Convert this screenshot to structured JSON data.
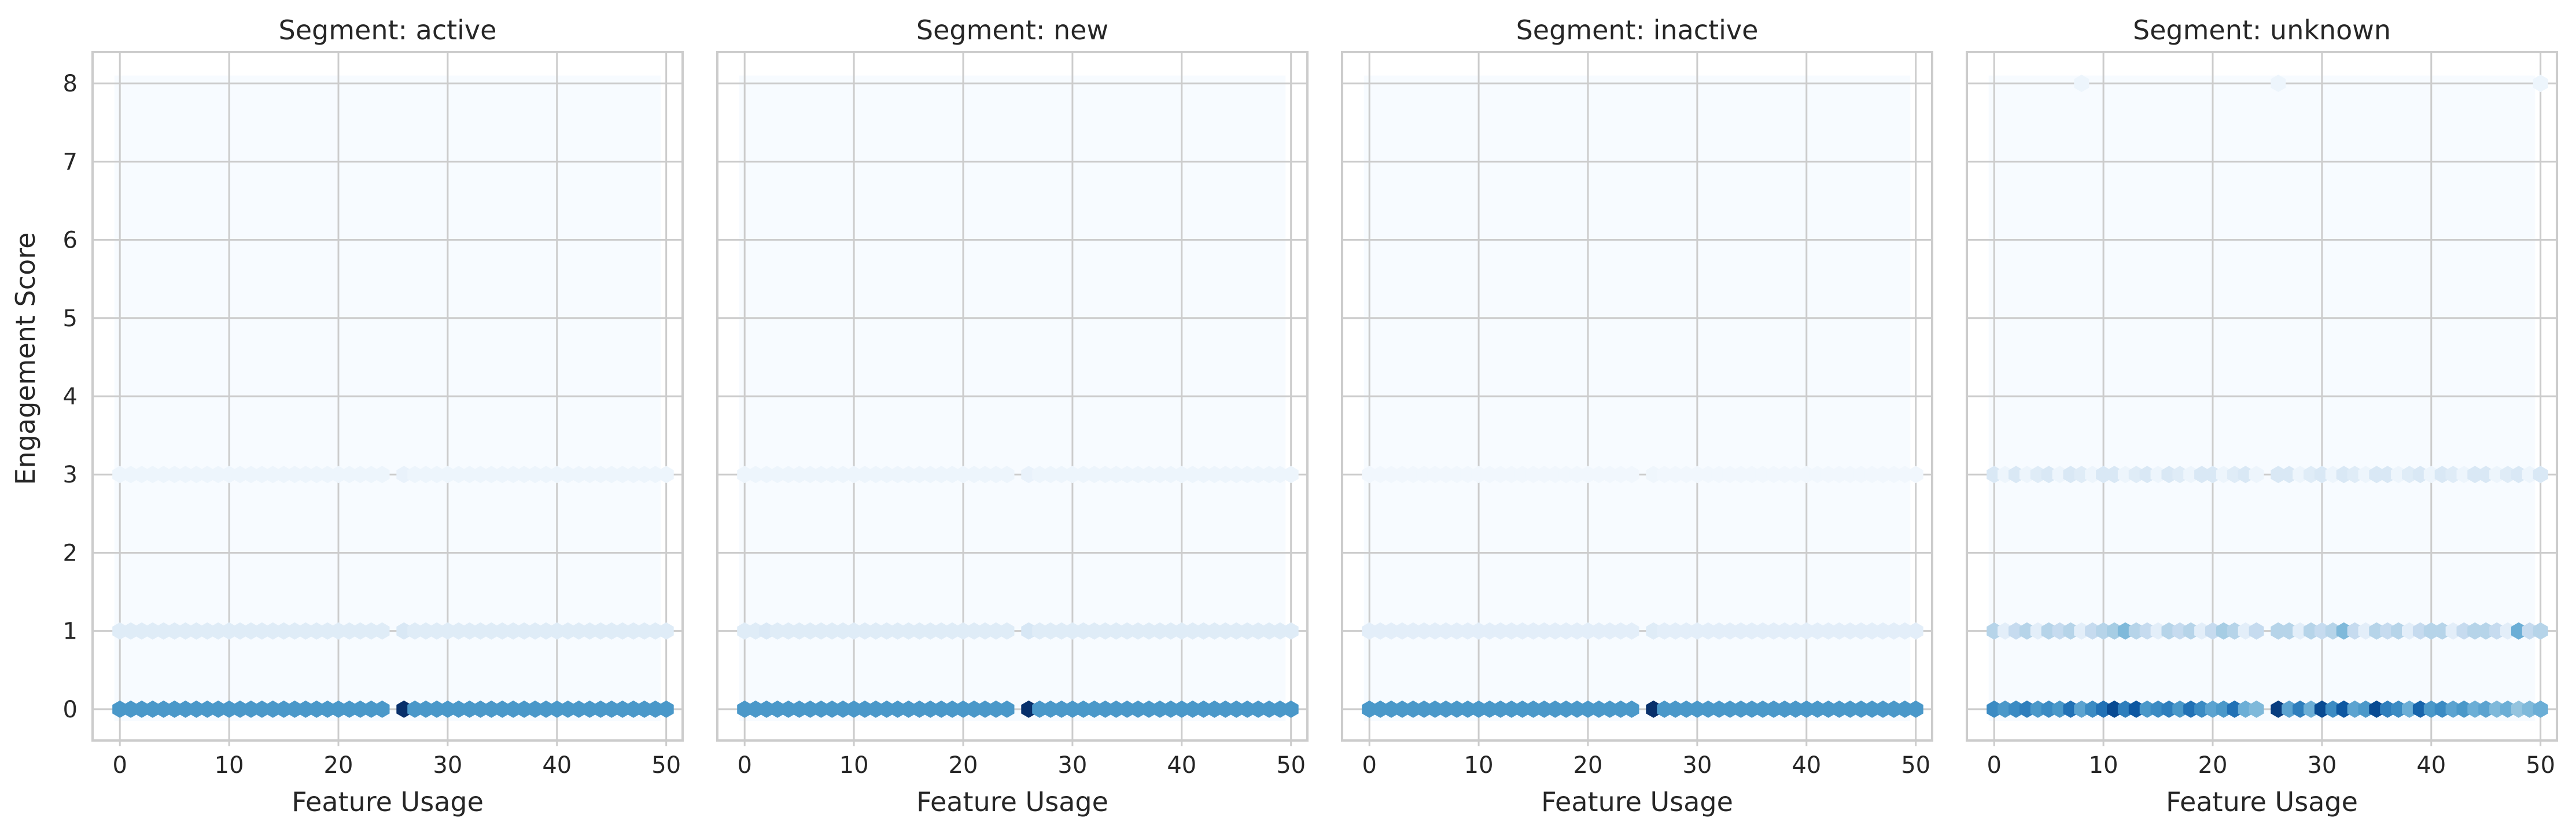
{
  "figure": {
    "ylabel": "Engagement Score",
    "xlabel": "Feature Usage"
  },
  "colors": {
    "background": "#f7fbff",
    "frame": "#cccccc",
    "grid": "#cccccc",
    "text": "#262626",
    "scale": [
      "#f7fbff",
      "#deebf7",
      "#c6dbef",
      "#9ecae1",
      "#6baed6",
      "#4292c6",
      "#2171b5",
      "#08519c",
      "#08306b"
    ]
  },
  "chart_data": [
    {
      "type": "hexbin",
      "title": "Segment: active",
      "xlabel": "Feature Usage",
      "ylabel": "Engagement Score",
      "xlim": [
        -2.5,
        51.5
      ],
      "ylim": [
        -0.4,
        8.4
      ],
      "xticks": [
        0,
        10,
        20,
        30,
        40,
        50
      ],
      "yticks": [
        0,
        1,
        2,
        3,
        4,
        5,
        6,
        7,
        8
      ],
      "grid": true,
      "colormap": "Blues",
      "rows": [
        {
          "y": 0,
          "levels": [
            0.6,
            0.6,
            0.6,
            0.6,
            0.6,
            0.6,
            0.6,
            0.6,
            0.6,
            0.6,
            0.6,
            0.6,
            0.6,
            0.6,
            0.6,
            0.6,
            0.6,
            0.6,
            0.6,
            0.6,
            0.6,
            0.6,
            0.6,
            0.6,
            0.6,
            0.0,
            1.0,
            0.6,
            0.6,
            0.6,
            0.6,
            0.6,
            0.6,
            0.6,
            0.6,
            0.6,
            0.6,
            0.6,
            0.6,
            0.6,
            0.6,
            0.6,
            0.6,
            0.6,
            0.6,
            0.6,
            0.6,
            0.6,
            0.6,
            0.6,
            0.6
          ]
        },
        {
          "y": 1,
          "levels": [
            0.12,
            0.12,
            0.12,
            0.12,
            0.12,
            0.12,
            0.12,
            0.12,
            0.12,
            0.12,
            0.12,
            0.12,
            0.12,
            0.12,
            0.12,
            0.12,
            0.12,
            0.12,
            0.12,
            0.12,
            0.12,
            0.12,
            0.12,
            0.12,
            0.12,
            0.0,
            0.15,
            0.12,
            0.12,
            0.12,
            0.12,
            0.12,
            0.12,
            0.12,
            0.12,
            0.12,
            0.12,
            0.12,
            0.12,
            0.12,
            0.12,
            0.12,
            0.12,
            0.12,
            0.12,
            0.12,
            0.12,
            0.12,
            0.12,
            0.12,
            0.12
          ]
        },
        {
          "y": 3,
          "levels": [
            0.05,
            0.05,
            0.05,
            0.05,
            0.05,
            0.05,
            0.05,
            0.05,
            0.05,
            0.05,
            0.05,
            0.05,
            0.05,
            0.05,
            0.05,
            0.05,
            0.05,
            0.05,
            0.05,
            0.05,
            0.05,
            0.05,
            0.05,
            0.05,
            0.05,
            0.0,
            0.07,
            0.05,
            0.05,
            0.05,
            0.05,
            0.05,
            0.05,
            0.05,
            0.05,
            0.05,
            0.05,
            0.05,
            0.05,
            0.05,
            0.05,
            0.05,
            0.05,
            0.05,
            0.05,
            0.05,
            0.05,
            0.05,
            0.05,
            0.05,
            0.05
          ]
        }
      ]
    },
    {
      "type": "hexbin",
      "title": "Segment: new",
      "xlabel": "Feature Usage",
      "ylabel": "",
      "xlim": [
        -2.5,
        51.5
      ],
      "ylim": [
        -0.4,
        8.4
      ],
      "xticks": [
        0,
        10,
        20,
        30,
        40,
        50
      ],
      "yticks": [
        0,
        1,
        2,
        3,
        4,
        5,
        6,
        7,
        8
      ],
      "grid": true,
      "colormap": "Blues",
      "rows": [
        {
          "y": 0,
          "levels": [
            0.6,
            0.6,
            0.6,
            0.6,
            0.6,
            0.6,
            0.6,
            0.6,
            0.6,
            0.6,
            0.6,
            0.6,
            0.6,
            0.6,
            0.6,
            0.6,
            0.6,
            0.6,
            0.6,
            0.6,
            0.6,
            0.6,
            0.6,
            0.6,
            0.6,
            0.0,
            1.0,
            0.6,
            0.6,
            0.6,
            0.6,
            0.6,
            0.6,
            0.6,
            0.6,
            0.6,
            0.6,
            0.6,
            0.6,
            0.6,
            0.6,
            0.6,
            0.6,
            0.6,
            0.6,
            0.6,
            0.6,
            0.6,
            0.6,
            0.6,
            0.6
          ]
        },
        {
          "y": 1,
          "levels": [
            0.12,
            0.12,
            0.14,
            0.12,
            0.12,
            0.12,
            0.12,
            0.12,
            0.12,
            0.12,
            0.12,
            0.12,
            0.12,
            0.12,
            0.12,
            0.12,
            0.12,
            0.12,
            0.12,
            0.12,
            0.12,
            0.12,
            0.12,
            0.12,
            0.12,
            0.0,
            0.16,
            0.12,
            0.12,
            0.12,
            0.12,
            0.12,
            0.12,
            0.12,
            0.12,
            0.12,
            0.12,
            0.12,
            0.12,
            0.12,
            0.12,
            0.12,
            0.12,
            0.12,
            0.12,
            0.12,
            0.12,
            0.12,
            0.12,
            0.12,
            0.12
          ]
        },
        {
          "y": 3,
          "levels": [
            0.05,
            0.05,
            0.05,
            0.05,
            0.05,
            0.05,
            0.05,
            0.05,
            0.05,
            0.05,
            0.05,
            0.05,
            0.05,
            0.05,
            0.05,
            0.05,
            0.05,
            0.05,
            0.05,
            0.05,
            0.05,
            0.05,
            0.05,
            0.05,
            0.05,
            0.0,
            0.07,
            0.05,
            0.05,
            0.05,
            0.05,
            0.05,
            0.05,
            0.05,
            0.05,
            0.05,
            0.05,
            0.05,
            0.05,
            0.05,
            0.05,
            0.05,
            0.05,
            0.05,
            0.05,
            0.05,
            0.05,
            0.05,
            0.05,
            0.05,
            0.05
          ]
        }
      ]
    },
    {
      "type": "hexbin",
      "title": "Segment: inactive",
      "xlabel": "Feature Usage",
      "ylabel": "",
      "xlim": [
        -2.5,
        51.5
      ],
      "ylim": [
        -0.4,
        8.4
      ],
      "xticks": [
        0,
        10,
        20,
        30,
        40,
        50
      ],
      "yticks": [
        0,
        1,
        2,
        3,
        4,
        5,
        6,
        7,
        8
      ],
      "grid": true,
      "colormap": "Blues",
      "rows": [
        {
          "y": 0,
          "levels": [
            0.6,
            0.6,
            0.6,
            0.6,
            0.6,
            0.6,
            0.6,
            0.6,
            0.6,
            0.6,
            0.6,
            0.6,
            0.6,
            0.6,
            0.6,
            0.6,
            0.6,
            0.6,
            0.6,
            0.6,
            0.6,
            0.6,
            0.6,
            0.6,
            0.6,
            0.0,
            1.0,
            0.6,
            0.6,
            0.6,
            0.6,
            0.6,
            0.6,
            0.6,
            0.6,
            0.6,
            0.6,
            0.6,
            0.6,
            0.6,
            0.6,
            0.6,
            0.6,
            0.6,
            0.6,
            0.6,
            0.6,
            0.6,
            0.6,
            0.6,
            0.6
          ]
        },
        {
          "y": 1,
          "levels": [
            0.1,
            0.1,
            0.1,
            0.1,
            0.1,
            0.1,
            0.1,
            0.1,
            0.1,
            0.1,
            0.1,
            0.1,
            0.1,
            0.1,
            0.1,
            0.1,
            0.1,
            0.1,
            0.1,
            0.1,
            0.1,
            0.1,
            0.1,
            0.1,
            0.1,
            0.0,
            0.12,
            0.1,
            0.1,
            0.1,
            0.1,
            0.1,
            0.1,
            0.1,
            0.1,
            0.1,
            0.1,
            0.1,
            0.1,
            0.1,
            0.1,
            0.1,
            0.1,
            0.1,
            0.1,
            0.1,
            0.1,
            0.1,
            0.1,
            0.1,
            0.1
          ]
        },
        {
          "y": 3,
          "levels": [
            0.03,
            0.03,
            0.03,
            0.03,
            0.03,
            0.03,
            0.03,
            0.03,
            0.03,
            0.03,
            0.03,
            0.03,
            0.03,
            0.03,
            0.03,
            0.03,
            0.03,
            0.03,
            0.03,
            0.03,
            0.03,
            0.03,
            0.03,
            0.03,
            0.03,
            0.0,
            0.04,
            0.03,
            0.03,
            0.03,
            0.03,
            0.03,
            0.03,
            0.03,
            0.03,
            0.03,
            0.03,
            0.03,
            0.03,
            0.03,
            0.03,
            0.03,
            0.03,
            0.03,
            0.03,
            0.03,
            0.03,
            0.03,
            0.03,
            0.03,
            0.03
          ]
        }
      ]
    },
    {
      "type": "hexbin",
      "title": "Segment: unknown",
      "xlabel": "Feature Usage",
      "ylabel": "",
      "xlim": [
        -2.5,
        51.5
      ],
      "ylim": [
        -0.4,
        8.4
      ],
      "xticks": [
        0,
        10,
        20,
        30,
        40,
        50
      ],
      "yticks": [
        0,
        1,
        2,
        3,
        4,
        5,
        6,
        7,
        8
      ],
      "grid": true,
      "colormap": "Blues",
      "rows": [
        {
          "y": 0,
          "levels": [
            0.65,
            0.6,
            0.65,
            0.7,
            0.6,
            0.65,
            0.6,
            0.75,
            0.55,
            0.65,
            0.75,
            0.9,
            0.7,
            0.85,
            0.6,
            0.65,
            0.7,
            0.6,
            0.75,
            0.65,
            0.55,
            0.6,
            0.75,
            0.5,
            0.45,
            0.0,
            0.95,
            0.55,
            0.7,
            0.5,
            0.9,
            0.65,
            0.85,
            0.55,
            0.6,
            0.9,
            0.7,
            0.65,
            0.5,
            0.8,
            0.6,
            0.65,
            0.55,
            0.6,
            0.5,
            0.55,
            0.45,
            0.5,
            0.4,
            0.45,
            0.5
          ]
        },
        {
          "y": 1,
          "levels": [
            0.3,
            0.1,
            0.25,
            0.3,
            0.1,
            0.3,
            0.25,
            0.3,
            0.1,
            0.25,
            0.3,
            0.35,
            0.45,
            0.3,
            0.25,
            0.1,
            0.3,
            0.25,
            0.3,
            0.1,
            0.25,
            0.35,
            0.3,
            0.1,
            0.25,
            0.0,
            0.3,
            0.3,
            0.1,
            0.3,
            0.25,
            0.3,
            0.45,
            0.25,
            0.1,
            0.3,
            0.25,
            0.3,
            0.1,
            0.25,
            0.3,
            0.3,
            0.1,
            0.25,
            0.3,
            0.3,
            0.25,
            0.1,
            0.5,
            0.25,
            0.3
          ]
        },
        {
          "y": 3,
          "levels": [
            0.15,
            0.05,
            0.15,
            0.05,
            0.12,
            0.15,
            0.05,
            0.15,
            0.12,
            0.05,
            0.15,
            0.15,
            0.05,
            0.12,
            0.15,
            0.05,
            0.15,
            0.12,
            0.05,
            0.15,
            0.15,
            0.05,
            0.12,
            0.15,
            0.05,
            0.0,
            0.15,
            0.15,
            0.05,
            0.12,
            0.15,
            0.05,
            0.15,
            0.12,
            0.05,
            0.15,
            0.15,
            0.05,
            0.12,
            0.15,
            0.05,
            0.15,
            0.12,
            0.05,
            0.15,
            0.15,
            0.05,
            0.12,
            0.15,
            0.05,
            0.15
          ]
        },
        {
          "y": 8,
          "levels": [
            0.0,
            0.0,
            0.0,
            0.0,
            0.0,
            0.0,
            0.0,
            0.0,
            0.05,
            0.0,
            0.0,
            0.0,
            0.0,
            0.0,
            0.0,
            0.0,
            0.0,
            0.0,
            0.0,
            0.0,
            0.0,
            0.0,
            0.0,
            0.0,
            0.0,
            0.0,
            0.05,
            0.0,
            0.0,
            0.0,
            0.0,
            0.0,
            0.0,
            0.0,
            0.0,
            0.0,
            0.0,
            0.0,
            0.0,
            0.0,
            0.0,
            0.0,
            0.0,
            0.0,
            0.0,
            0.0,
            0.0,
            0.0,
            0.0,
            0.0,
            0.05
          ]
        }
      ]
    }
  ]
}
